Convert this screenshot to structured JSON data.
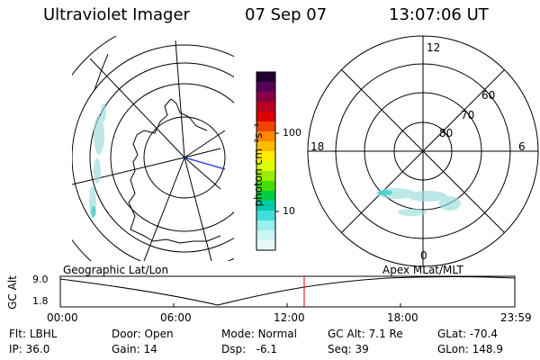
{
  "header": {
    "instrument": "Ultraviolet Imager",
    "date": "07 Sep 07",
    "time": "13:07:06 UT"
  },
  "colorbar": {
    "unit_label": "photon cm⁻²s⁻¹",
    "tick_labels": [
      "100",
      "10"
    ],
    "colors": [
      "#220033",
      "#550055",
      "#880044",
      "#bb0022",
      "#dd0000",
      "#ee4400",
      "#ff8800",
      "#ffbb00",
      "#ffee00",
      "#ddff00",
      "#99ee00",
      "#44dd00",
      "#00cc44",
      "#00ccaa",
      "#44dddd",
      "#99eeee",
      "#ccf5f5",
      "#e8f8f8"
    ]
  },
  "panels": {
    "left_label": "Geographic Lat/Lon",
    "right_label": "Apex MLat/MLT"
  },
  "polar_plot": {
    "mlt_labels": {
      "top": "12",
      "left": "18",
      "right": "6",
      "bottom": "0"
    },
    "lat_labels": [
      "60",
      "70",
      "80"
    ]
  },
  "altitude_plot": {
    "ylabel": "GC Alt",
    "y_ticks": [
      "9.0",
      "1.8"
    ],
    "x_ticks": [
      "00:00",
      "06:00",
      "12:00",
      "18:00",
      "23:59"
    ],
    "current_time_marker": "13:07:06"
  },
  "footer": [
    [
      {
        "key": "Flt:",
        "value": "LBHL"
      },
      {
        "key": "Door:",
        "value": "Open"
      },
      {
        "key": "Mode:",
        "value": "Normal"
      },
      {
        "key": "GC Alt:",
        "value": "7.1 Re"
      },
      {
        "key": "GLat:",
        "value": "-70.4"
      }
    ],
    [
      {
        "key": "IP:",
        "value": "36.0"
      },
      {
        "key": "Gain:",
        "value": "14"
      },
      {
        "key": "Dsp:",
        "value": "  -6.1"
      },
      {
        "key": "Seq:",
        "value": "39"
      },
      {
        "key": "GLon:",
        "value": "148.9"
      }
    ]
  ]
}
